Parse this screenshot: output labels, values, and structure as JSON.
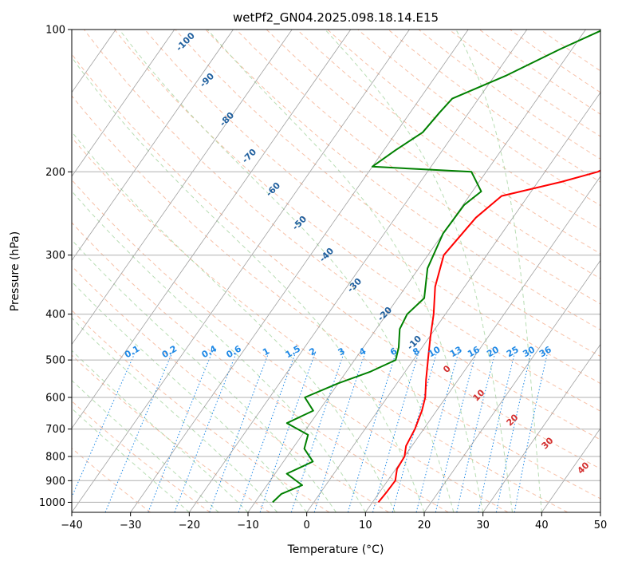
{
  "chart_data": {
    "type": "line",
    "title": "wetPf2_GN04.2025.098.18.14.E15",
    "xlabel": "Temperature (°C)",
    "ylabel": "Pressure (hPa)",
    "xlim": [
      -40,
      50
    ],
    "ylim": [
      1050,
      100
    ],
    "y_scale": "log",
    "skew": "skew-T",
    "grid": true,
    "x_ticks": [
      "−40",
      "−30",
      "−20",
      "−10",
      "0",
      "10",
      "20",
      "30",
      "40",
      "50"
    ],
    "y_ticks": [
      "100",
      "200",
      "300",
      "400",
      "500",
      "600",
      "700",
      "800",
      "900",
      "1000"
    ],
    "series": [
      {
        "color": "#ff0000",
        "points": [
          [
            1000,
            11.0
          ],
          [
            950,
            11.2
          ],
          [
            900,
            11.3
          ],
          [
            850,
            10.2
          ],
          [
            800,
            10.0
          ],
          [
            760,
            9.0
          ],
          [
            700,
            8.5
          ],
          [
            640,
            7.5
          ],
          [
            600,
            6.5
          ],
          [
            550,
            4.5
          ],
          [
            500,
            2.5
          ],
          [
            450,
            0.3
          ],
          [
            400,
            -2.0
          ],
          [
            350,
            -5.0
          ],
          [
            300,
            -7.3
          ],
          [
            250,
            -6.3
          ],
          [
            225,
            -4.5
          ],
          [
            210,
            4.0
          ],
          [
            200,
            9.0
          ],
          [
            180,
            14.0
          ],
          [
            150,
            22.0
          ],
          [
            130,
            30.0
          ],
          [
            115,
            34.0
          ],
          [
            100,
            38.0
          ]
        ]
      },
      {
        "color": "#008000",
        "points": [
          [
            1000,
            -7.0
          ],
          [
            960,
            -6.5
          ],
          [
            920,
            -4.0
          ],
          [
            870,
            -8.0
          ],
          [
            820,
            -5.0
          ],
          [
            770,
            -8.0
          ],
          [
            720,
            -9.0
          ],
          [
            680,
            -14.0
          ],
          [
            640,
            -11.0
          ],
          [
            600,
            -14.0
          ],
          [
            560,
            -10.0
          ],
          [
            530,
            -6.0
          ],
          [
            500,
            -3.0
          ],
          [
            470,
            -4.0
          ],
          [
            430,
            -6.0
          ],
          [
            400,
            -6.5
          ],
          [
            370,
            -5.5
          ],
          [
            320,
            -8.5
          ],
          [
            270,
            -10.0
          ],
          [
            235,
            -9.8
          ],
          [
            220,
            -8.5
          ],
          [
            200,
            -12.5
          ],
          [
            195,
            -30.0
          ],
          [
            180,
            -28.0
          ],
          [
            165,
            -25.5
          ],
          [
            150,
            -25.0
          ],
          [
            140,
            -24.5
          ],
          [
            125,
            -18.0
          ],
          [
            110,
            -12.0
          ],
          [
            100,
            -7.0
          ]
        ]
      }
    ],
    "mixing_ratio_labels": [
      "0.1",
      "0.2",
      "0.4",
      "0.6",
      "1",
      "1.5",
      "2",
      "3",
      "4",
      "6",
      "8",
      "10",
      "13",
      "16",
      "20",
      "25",
      "30",
      "36"
    ],
    "dry_adiabat_labels": [
      "-100",
      "-90",
      "-80",
      "-70",
      "-60",
      "-50",
      "-40",
      "-30",
      "-20",
      "-10"
    ],
    "moist_adiabat_labels": [
      "0",
      "10",
      "20",
      "30",
      "40"
    ]
  }
}
